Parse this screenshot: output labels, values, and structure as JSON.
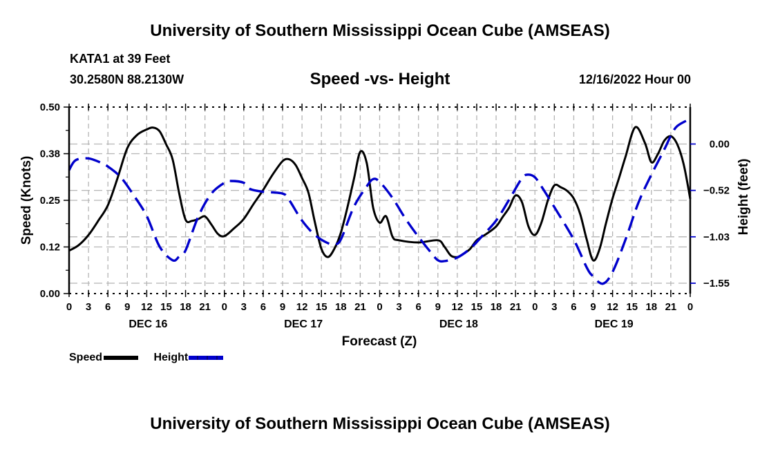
{
  "header": {
    "title": "University of Southern Mississippi Ocean Cube (AMSEAS)",
    "station": "KATA1 at 39 Feet",
    "coords": "30.2580N  88.2130W",
    "subtitle": "Speed -vs- Height",
    "datetime": "12/16/2022 Hour 00"
  },
  "footer": {
    "title": "University of Southern Mississippi Ocean Cube (AMSEAS)"
  },
  "colors": {
    "speed": "#000000",
    "height": "#0000cc",
    "grid": "#b4b4b4"
  },
  "legend": {
    "items": [
      {
        "label": "Speed",
        "style": "solid",
        "color": "#000000"
      },
      {
        "label": "Height",
        "style": "dashed",
        "color": "#0000cc"
      }
    ]
  },
  "chart_data": {
    "type": "line",
    "title": "Speed -vs- Height",
    "xlabel": "Forecast (Z)",
    "ylabel": "Speed (Knots)",
    "y2label": "Height (feet)",
    "xlim": [
      0,
      96
    ],
    "ylim": [
      0,
      0.5
    ],
    "y2lim": [
      -1.66,
      0.41
    ],
    "grid": true,
    "legend_position": "bottom-left",
    "x_unit": "forecast hours from 12/16/2022 00Z",
    "x_tick_values": [
      0,
      3,
      6,
      9,
      12,
      15,
      18,
      21,
      24,
      27,
      30,
      33,
      36,
      39,
      42,
      45,
      48,
      51,
      54,
      57,
      60,
      63,
      66,
      69,
      72,
      75,
      78,
      81,
      84,
      87,
      90,
      93,
      96
    ],
    "x_tick_labels": [
      "0",
      "3",
      "6",
      "9",
      "12",
      "15",
      "18",
      "21",
      "0",
      "3",
      "6",
      "9",
      "12",
      "15",
      "18",
      "21",
      "0",
      "3",
      "6",
      "9",
      "12",
      "15",
      "18",
      "21",
      "0",
      "3",
      "6",
      "9",
      "12",
      "15",
      "18",
      "21",
      "0"
    ],
    "day_labels": [
      {
        "label": "DEC 16",
        "center_hour": 12
      },
      {
        "label": "DEC 17",
        "center_hour": 36
      },
      {
        "label": "DEC 18",
        "center_hour": 60
      },
      {
        "label": "DEC 19",
        "center_hour": 84
      }
    ],
    "y_ticks": [
      {
        "value": 0.0,
        "label": "0.00"
      },
      {
        "value": 0.125,
        "label": "0.12"
      },
      {
        "value": 0.25,
        "label": "0.25"
      },
      {
        "value": 0.375,
        "label": "0.38"
      },
      {
        "value": 0.5,
        "label": "0.50"
      }
    ],
    "y2_ticks": [
      {
        "value": 0.0,
        "label": "0.00"
      },
      {
        "value": -0.515,
        "label": "−0.52"
      },
      {
        "value": -1.03,
        "label": "−1.03"
      },
      {
        "value": -1.545,
        "label": "−1.55"
      }
    ],
    "series": [
      {
        "name": "Speed",
        "axis": "left",
        "x": [
          0,
          1.5,
          3,
          4.5,
          6,
          7.5,
          9,
          10.5,
          12,
          13,
          14,
          15,
          16,
          17,
          18,
          19,
          20,
          21,
          22,
          23,
          24,
          25.5,
          27,
          28.5,
          30,
          31.5,
          33,
          34,
          35,
          36,
          37,
          38,
          39,
          40,
          41,
          42,
          43,
          44,
          45,
          46,
          47,
          48,
          49,
          50,
          51,
          54,
          57,
          58,
          59,
          60,
          61,
          62,
          63,
          64.5,
          66,
          67,
          68,
          69,
          70,
          71,
          72,
          73,
          74,
          75,
          76,
          77,
          78,
          79,
          80,
          81,
          82,
          83,
          84,
          85,
          86,
          87.5,
          89,
          90,
          91,
          92,
          93,
          94,
          95,
          96
        ],
        "values": [
          0.115,
          0.13,
          0.157,
          0.195,
          0.237,
          0.31,
          0.39,
          0.425,
          0.44,
          0.445,
          0.435,
          0.4,
          0.36,
          0.27,
          0.198,
          0.195,
          0.2,
          0.207,
          0.185,
          0.16,
          0.154,
          0.175,
          0.2,
          0.24,
          0.278,
          0.32,
          0.355,
          0.36,
          0.345,
          0.31,
          0.27,
          0.19,
          0.12,
          0.098,
          0.12,
          0.163,
          0.23,
          0.305,
          0.38,
          0.35,
          0.23,
          0.19,
          0.207,
          0.152,
          0.143,
          0.137,
          0.143,
          0.126,
          0.102,
          0.098,
          0.107,
          0.12,
          0.143,
          0.16,
          0.18,
          0.205,
          0.23,
          0.263,
          0.245,
          0.18,
          0.157,
          0.19,
          0.25,
          0.29,
          0.285,
          0.275,
          0.255,
          0.213,
          0.145,
          0.089,
          0.12,
          0.19,
          0.255,
          0.31,
          0.367,
          0.446,
          0.404,
          0.352,
          0.374,
          0.41,
          0.422,
          0.4,
          0.346,
          0.254
        ]
      },
      {
        "name": "Height",
        "axis": "right",
        "x": [
          0,
          1,
          3,
          5,
          6,
          8,
          10,
          12,
          14,
          16,
          17,
          18,
          20,
          22,
          24,
          25,
          27,
          28,
          30,
          33,
          34,
          36,
          38,
          40,
          41,
          42,
          44,
          46,
          47,
          48,
          50,
          52,
          54,
          56,
          57,
          58,
          60,
          62,
          64,
          66,
          68,
          70,
          71,
          72,
          73,
          75,
          78,
          80,
          81,
          82.5,
          84,
          86,
          88,
          90,
          92,
          93,
          94,
          96
        ],
        "values": [
          -0.29,
          -0.18,
          -0.16,
          -0.21,
          -0.25,
          -0.37,
          -0.57,
          -0.8,
          -1.14,
          -1.29,
          -1.25,
          -1.18,
          -0.8,
          -0.55,
          -0.43,
          -0.41,
          -0.43,
          -0.5,
          -0.53,
          -0.55,
          -0.62,
          -0.85,
          -1.01,
          -1.1,
          -1.11,
          -1.06,
          -0.7,
          -0.47,
          -0.39,
          -0.42,
          -0.6,
          -0.83,
          -1.03,
          -1.21,
          -1.29,
          -1.3,
          -1.26,
          -1.16,
          -1.01,
          -0.85,
          -0.62,
          -0.38,
          -0.34,
          -0.37,
          -0.47,
          -0.7,
          -1.06,
          -1.37,
          -1.47,
          -1.55,
          -1.42,
          -1.06,
          -0.65,
          -0.34,
          -0.06,
          0.09,
          0.2,
          0.28
        ]
      }
    ]
  }
}
